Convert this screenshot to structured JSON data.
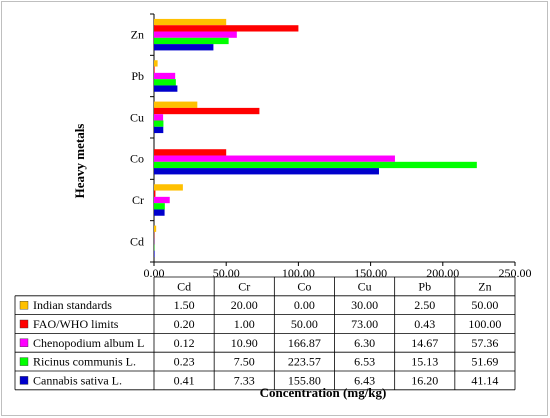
{
  "chart_data": {
    "type": "bar",
    "orientation": "horizontal",
    "title": "",
    "ylabel": "Heavy metals",
    "xlabel": "Concentration (mg/kg)",
    "categories": [
      "Cd",
      "Cr",
      "Co",
      "Cu",
      "Pb",
      "Zn"
    ],
    "xlim": [
      0,
      250
    ],
    "xticks": [
      "0.00",
      "50.00",
      "100.00",
      "150.00",
      "200.00",
      "250.00"
    ],
    "grid": false,
    "legend_placement": "data-table-below",
    "series": [
      {
        "name": "Indian standards",
        "color": "#ffc000",
        "values": [
          1.5,
          20.0,
          0.0,
          30.0,
          2.5,
          50.0
        ],
        "labels": [
          "1.50",
          "20.00",
          "0.00",
          "30.00",
          "2.50",
          "50.00"
        ]
      },
      {
        "name": "FAO/WHO limits",
        "color": "#ff0000",
        "values": [
          0.2,
          1.0,
          50.0,
          73.0,
          0.43,
          100.0
        ],
        "labels": [
          "0.20",
          "1.00",
          "50.00",
          "73.00",
          "0.43",
          "100.00"
        ]
      },
      {
        "name": "Chenopodium album L",
        "color": "#ff00ff",
        "values": [
          0.12,
          10.9,
          166.87,
          6.3,
          14.67,
          57.36
        ],
        "labels": [
          "0.12",
          "10.90",
          "166.87",
          "6.30",
          "14.67",
          "57.36"
        ]
      },
      {
        "name": "Ricinus communis L.",
        "color": "#00ff00",
        "values": [
          0.23,
          7.5,
          223.57,
          6.53,
          15.13,
          51.69
        ],
        "labels": [
          "0.23",
          "7.50",
          "223.57",
          "6.53",
          "15.13",
          "51.69"
        ]
      },
      {
        "name": "Cannabis sativa L.",
        "color": "#0000cc",
        "values": [
          0.41,
          7.33,
          155.8,
          6.43,
          16.2,
          41.14
        ],
        "labels": [
          "0.41",
          "7.33",
          "155.80",
          "6.43",
          "16.20",
          "41.14"
        ]
      }
    ]
  }
}
